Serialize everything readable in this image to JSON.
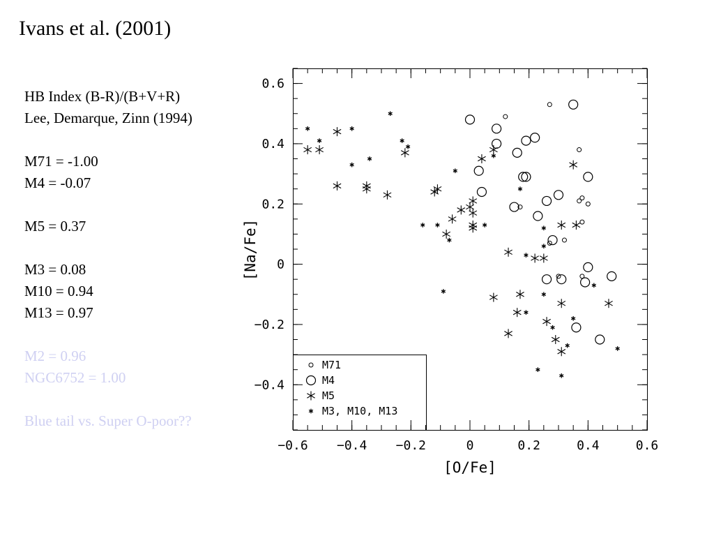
{
  "slide": {
    "title": "Ivans et al. (2001)",
    "notes": {
      "hb_index": "HB Index (B-R)/(B+V+R)",
      "hb_ref": "Lee, Demarque, Zinn (1994)",
      "m71": "M71 = -1.00",
      "m4": "M4 = -0.07",
      "m5": "M5 = 0.37",
      "m3": "M3 = 0.08",
      "m10": "M10 = 0.94",
      "m13": "M13 = 0.97",
      "m2": "M2 = 0.96",
      "ngc6752": "NGC6752 = 1.00",
      "question": "Blue tail vs. Super O-poor??"
    },
    "faded_color": "#cfd0f2"
  },
  "chart_data": {
    "type": "scatter",
    "xlabel": "[O/Fe]",
    "ylabel": "[Na/Fe]",
    "xlim": [
      -0.6,
      0.6
    ],
    "ylim": [
      -0.55,
      0.65
    ],
    "xticks": [
      -0.6,
      -0.4,
      -0.2,
      0,
      0.2,
      0.4,
      0.6
    ],
    "xtick_labels": [
      "−0.6",
      "−0.4",
      "−0.2",
      "0",
      "0.2",
      "0.4",
      "0.6"
    ],
    "yticks": [
      -0.4,
      -0.2,
      0,
      0.2,
      0.4,
      0.6
    ],
    "ytick_labels": [
      "−0.4",
      "−0.2",
      "0",
      "0.2",
      "0.4",
      "0.6"
    ],
    "legend_position": "bottom-left",
    "series": [
      {
        "name": "M71",
        "marker": "small-circle",
        "points": [
          [
            0.12,
            0.49
          ],
          [
            0.27,
            0.53
          ],
          [
            0.37,
            0.38
          ],
          [
            0.17,
            0.19
          ],
          [
            0.37,
            0.21
          ],
          [
            0.38,
            0.22
          ],
          [
            0.4,
            0.2
          ],
          [
            0.38,
            0.14
          ],
          [
            0.32,
            0.08
          ],
          [
            0.38,
            -0.04
          ],
          [
            0.3,
            -0.04
          ],
          [
            0.27,
            0.07
          ]
        ]
      },
      {
        "name": "M4",
        "marker": "large-circle",
        "points": [
          [
            0.35,
            0.53
          ],
          [
            0.0,
            0.48
          ],
          [
            0.09,
            0.45
          ],
          [
            0.09,
            0.4
          ],
          [
            0.16,
            0.37
          ],
          [
            0.19,
            0.41
          ],
          [
            0.22,
            0.42
          ],
          [
            0.04,
            0.24
          ],
          [
            0.03,
            0.31
          ],
          [
            0.18,
            0.29
          ],
          [
            0.19,
            0.29
          ],
          [
            0.15,
            0.19
          ],
          [
            0.26,
            0.21
          ],
          [
            0.3,
            0.23
          ],
          [
            0.4,
            0.29
          ],
          [
            0.23,
            0.16
          ],
          [
            0.28,
            0.08
          ],
          [
            0.4,
            -0.01
          ],
          [
            0.26,
            -0.05
          ],
          [
            0.31,
            -0.05
          ],
          [
            0.39,
            -0.06
          ],
          [
            0.48,
            -0.04
          ],
          [
            0.36,
            -0.21
          ],
          [
            0.44,
            -0.25
          ]
        ]
      },
      {
        "name": "M5",
        "marker": "large-asterisk",
        "points": [
          [
            -0.55,
            0.38
          ],
          [
            -0.51,
            0.38
          ],
          [
            -0.45,
            0.44
          ],
          [
            -0.45,
            0.26
          ],
          [
            -0.35,
            0.26
          ],
          [
            -0.35,
            0.25
          ],
          [
            -0.28,
            0.23
          ],
          [
            -0.22,
            0.37
          ],
          [
            -0.12,
            0.24
          ],
          [
            -0.11,
            0.25
          ],
          [
            -0.06,
            0.15
          ],
          [
            -0.03,
            0.18
          ],
          [
            0.0,
            0.19
          ],
          [
            0.01,
            0.17
          ],
          [
            0.01,
            0.21
          ],
          [
            -0.08,
            0.1
          ],
          [
            0.01,
            0.12
          ],
          [
            0.01,
            0.13
          ],
          [
            0.04,
            0.35
          ],
          [
            0.08,
            0.38
          ],
          [
            0.13,
            0.04
          ],
          [
            0.22,
            0.02
          ],
          [
            0.25,
            0.02
          ],
          [
            0.31,
            0.13
          ],
          [
            0.35,
            0.33
          ],
          [
            0.36,
            0.13
          ],
          [
            0.08,
            -0.11
          ],
          [
            0.17,
            -0.1
          ],
          [
            0.16,
            -0.16
          ],
          [
            0.31,
            -0.13
          ],
          [
            0.26,
            -0.19
          ],
          [
            0.13,
            -0.23
          ],
          [
            0.29,
            -0.25
          ],
          [
            0.31,
            -0.29
          ],
          [
            0.47,
            -0.13
          ]
        ]
      },
      {
        "name": "M3, M10, M13",
        "marker": "small-asterisk",
        "points": [
          [
            -0.55,
            0.45
          ],
          [
            -0.51,
            0.41
          ],
          [
            -0.4,
            0.45
          ],
          [
            -0.27,
            0.5
          ],
          [
            -0.23,
            0.41
          ],
          [
            -0.21,
            0.39
          ],
          [
            -0.34,
            0.35
          ],
          [
            -0.4,
            0.33
          ],
          [
            -0.05,
            0.31
          ],
          [
            -0.16,
            0.13
          ],
          [
            -0.11,
            0.13
          ],
          [
            -0.07,
            0.08
          ],
          [
            0.05,
            0.13
          ],
          [
            0.08,
            0.36
          ],
          [
            0.17,
            0.25
          ],
          [
            0.25,
            0.12
          ],
          [
            0.25,
            0.06
          ],
          [
            0.19,
            0.03
          ],
          [
            0.19,
            -0.16
          ],
          [
            0.25,
            -0.1
          ],
          [
            0.28,
            -0.21
          ],
          [
            0.35,
            -0.18
          ],
          [
            0.33,
            -0.27
          ],
          [
            0.42,
            -0.07
          ],
          [
            0.23,
            -0.35
          ],
          [
            0.31,
            -0.37
          ],
          [
            0.5,
            -0.28
          ],
          [
            -0.09,
            -0.09
          ]
        ]
      }
    ]
  }
}
